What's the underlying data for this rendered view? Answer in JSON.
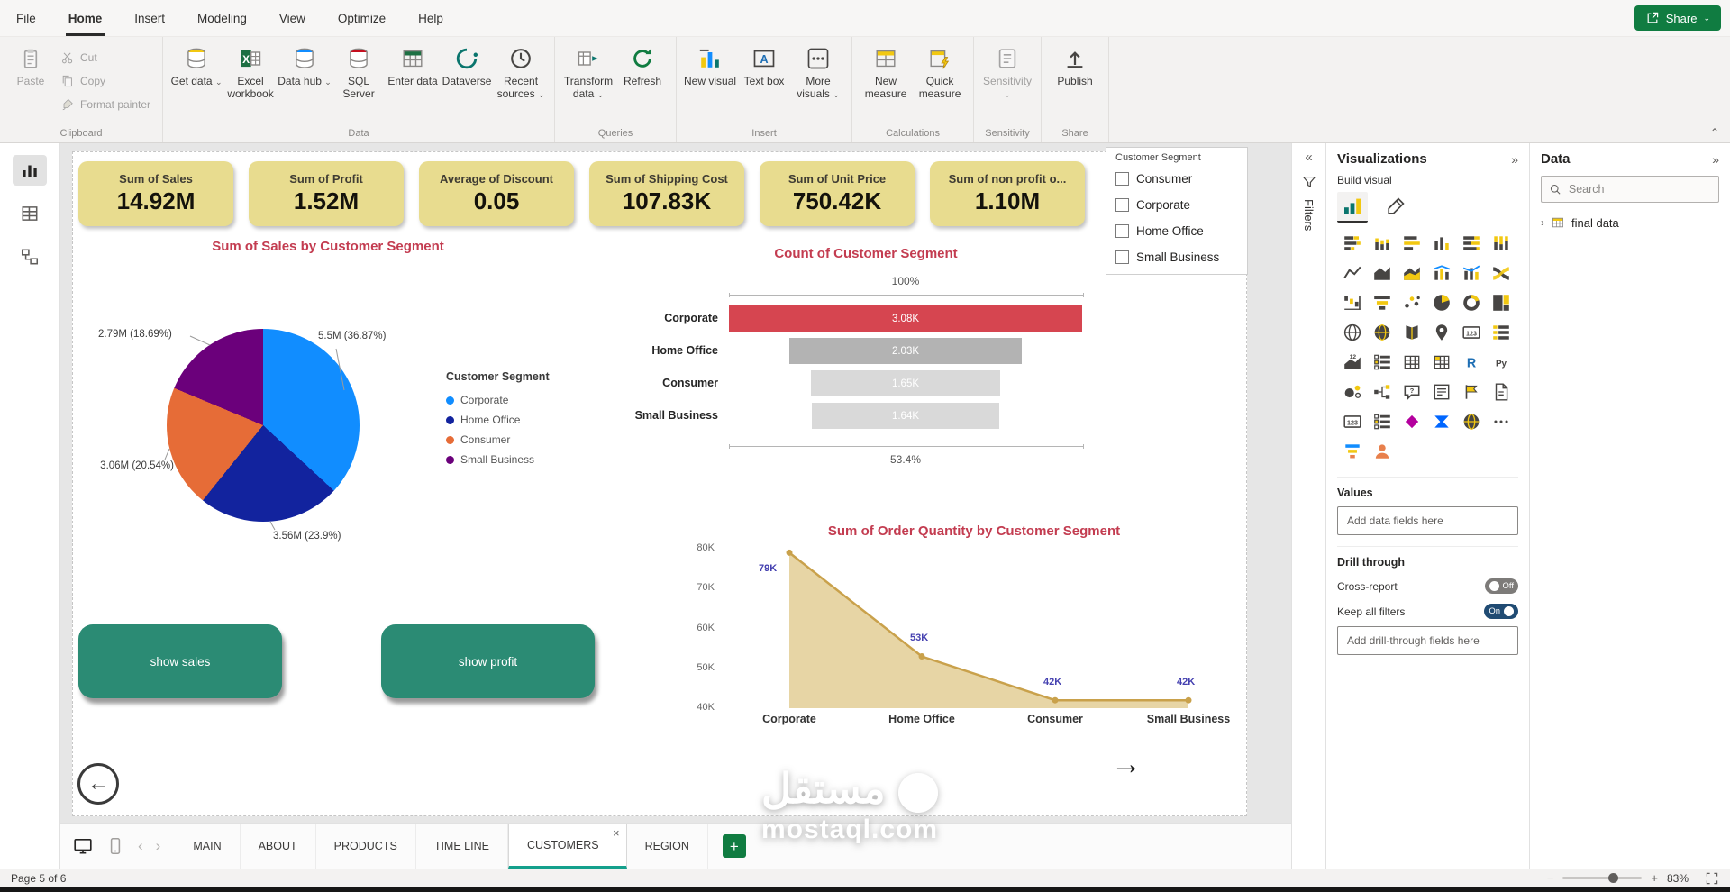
{
  "colors": {
    "accent-green": "#107C41",
    "kpi-bg": "#E8DC8F",
    "chart-title": "#C33C50",
    "button-teal": "#2B8B74",
    "tab-accent": "#14A08C",
    "toggle-on": "#204B73"
  },
  "menubar": {
    "items": [
      {
        "label": "File",
        "active": false
      },
      {
        "label": "Home",
        "active": true
      },
      {
        "label": "Insert",
        "active": false
      },
      {
        "label": "Modeling",
        "active": false
      },
      {
        "label": "View",
        "active": false
      },
      {
        "label": "Optimize",
        "active": false
      },
      {
        "label": "Help",
        "active": false
      }
    ],
    "share_label": "Share"
  },
  "ribbon": {
    "clipboard": {
      "name": "Clipboard",
      "paste_label": "Paste",
      "small_buttons": [
        {
          "name": "cut-button",
          "label": "Cut",
          "icon": "cut"
        },
        {
          "name": "copy-button",
          "label": "Copy",
          "icon": "copy"
        },
        {
          "name": "format-painter-button",
          "label": "Format painter",
          "icon": "brush"
        }
      ]
    },
    "groups": [
      {
        "name": "Data",
        "buttons": [
          {
            "name": "get-data-button",
            "label": "Get data",
            "icon": "db_yellow",
            "chevron": true
          },
          {
            "name": "excel-workbook-button",
            "label": "Excel workbook",
            "icon": "excel"
          },
          {
            "name": "data-hub-button",
            "label": "Data hub",
            "icon": "db_blue",
            "chevron": true
          },
          {
            "name": "sql-server-button",
            "label": "SQL Server",
            "icon": "db_red"
          },
          {
            "name": "enter-data-button",
            "label": "Enter data",
            "icon": "table_green"
          },
          {
            "name": "dataverse-button",
            "label": "Dataverse",
            "icon": "dataverse"
          },
          {
            "name": "recent-sources-button",
            "label": "Recent sources",
            "icon": "recent",
            "chevron": true
          }
        ]
      },
      {
        "name": "Queries",
        "buttons": [
          {
            "name": "transform-data-button",
            "label": "Transform data",
            "icon": "transform",
            "chevron": true
          },
          {
            "name": "refresh-button",
            "label": "Refresh",
            "icon": "refresh"
          }
        ]
      },
      {
        "name": "Insert",
        "buttons": [
          {
            "name": "new-visual-button",
            "label": "New visual",
            "icon": "newvisual"
          },
          {
            "name": "text-box-button",
            "label": "Text box",
            "icon": "textbox"
          },
          {
            "name": "more-visuals-button",
            "label": "More visuals",
            "icon": "morevisuals",
            "chevron": true
          }
        ]
      },
      {
        "name": "Calculations",
        "buttons": [
          {
            "name": "new-measure-button",
            "label": "New measure",
            "icon": "measure"
          },
          {
            "name": "quick-measure-button",
            "label": "Quick measure",
            "icon": "quickmeasure"
          }
        ]
      },
      {
        "name": "Sensitivity",
        "buttons": [
          {
            "name": "sensitivity-button",
            "label": "Sensitivity",
            "icon": "sensitivity",
            "chevron": true,
            "disabled": true
          }
        ]
      },
      {
        "name": "Share",
        "buttons": [
          {
            "name": "publish-button",
            "label": "Publish",
            "icon": "publish"
          }
        ]
      }
    ]
  },
  "left_rail": {
    "items": [
      {
        "name": "report-view-icon",
        "icon": "reportbars",
        "active": true
      },
      {
        "name": "table-view-icon",
        "icon": "grid",
        "active": false
      },
      {
        "name": "model-view-icon",
        "icon": "model",
        "active": false
      }
    ]
  },
  "canvas": {
    "kpi_cards": [
      {
        "title": "Sum of Sales",
        "value": "14.92M"
      },
      {
        "title": "Sum of Profit",
        "value": "1.52M"
      },
      {
        "title": "Average of Discount",
        "value": "0.05"
      },
      {
        "title": "Sum of Shipping Cost",
        "value": "107.83K"
      },
      {
        "title": "Sum of Unit Price",
        "value": "750.42K"
      },
      {
        "title": "Sum of non profit o...",
        "value": "1.10M"
      }
    ],
    "slicer": {
      "title": "Customer Segment",
      "options": [
        "Consumer",
        "Corporate",
        "Home Office",
        "Small Business"
      ]
    },
    "action_buttons": [
      {
        "label": "show sales"
      },
      {
        "label": "show profit"
      }
    ],
    "watermark": {
      "arabic": "مستقل",
      "latin": "mostaql.com"
    }
  },
  "chart_data": [
    {
      "type": "pie",
      "title": "Sum of Sales by Customer Segment",
      "legend_title": "Customer Segment",
      "legend_position": "right",
      "series": [
        {
          "name": "Corporate",
          "value": 5.5,
          "pct": 36.87,
          "label": "5.5M (36.87%)",
          "color": "#118DFF"
        },
        {
          "name": "Home Office",
          "value": 3.56,
          "pct": 23.9,
          "label": "3.56M (23.9%)",
          "color": "#12239E"
        },
        {
          "name": "Consumer",
          "value": 3.06,
          "pct": 20.54,
          "label": "3.06M (20.54%)",
          "color": "#E66C37"
        },
        {
          "name": "Small Business",
          "value": 2.79,
          "pct": 18.69,
          "label": "2.79M (18.69%)",
          "color": "#6B007B"
        }
      ]
    },
    {
      "type": "funnel",
      "title": "Count of Customer Segment",
      "categories": [
        "Corporate",
        "Home Office",
        "Consumer",
        "Small Business"
      ],
      "values": [
        3080,
        2030,
        1650,
        1640
      ],
      "labels": [
        "3.08K",
        "2.03K",
        "1.65K",
        "1.64K"
      ],
      "colors": [
        "#D64550",
        "#B3B3B3",
        "#D9D9D9",
        "#D9D9D9"
      ],
      "top_label": "100%",
      "bottom_label": "53.4%"
    },
    {
      "type": "area",
      "title": "Sum of Order Quantity by Customer Segment",
      "categories": [
        "Corporate",
        "Home Office",
        "Consumer",
        "Small Business"
      ],
      "values": [
        79000,
        53000,
        42000,
        42000
      ],
      "labels": [
        "79K",
        "53K",
        "42K",
        "42K"
      ],
      "ylim": [
        40000,
        80000
      ],
      "yticks": [
        "80K",
        "70K",
        "60K",
        "50K",
        "40K"
      ],
      "grid": false,
      "line_color": "#C9A14B",
      "fill_color": "#E7D5A5",
      "label_color": "#4541B0"
    }
  ],
  "pages_bar": {
    "tabs": [
      {
        "label": "MAIN",
        "active": false
      },
      {
        "label": "ABOUT",
        "active": false
      },
      {
        "label": "PRODUCTS",
        "active": false
      },
      {
        "label": "TIME LINE",
        "active": false
      },
      {
        "label": "CUSTOMERS",
        "active": true
      },
      {
        "label": "REGION",
        "active": false
      }
    ],
    "close_glyph": "×",
    "add_label": "+"
  },
  "status_bar": {
    "page_label": "Page 5 of 6",
    "zoom_percent": "83%"
  },
  "filters_panel": {
    "title": "Filters"
  },
  "viz_panel": {
    "title": "Visualizations",
    "build_label": "Build visual",
    "values_label": "Values",
    "values_placeholder": "Add data fields here",
    "drill_label": "Drill through",
    "cross_report_label": "Cross-report",
    "cross_report_state": "Off",
    "keep_filters_label": "Keep all filters",
    "keep_filters_state": "On",
    "drill_placeholder": "Add drill-through fields here",
    "icons": [
      {
        "name": "stacked-bar-chart-icon",
        "type": "hbars_s"
      },
      {
        "name": "stacked-column-chart-icon",
        "type": "vbars_s"
      },
      {
        "name": "clustered-bar-chart-icon",
        "type": "hbars"
      },
      {
        "name": "clustered-column-chart-icon",
        "type": "vbars"
      },
      {
        "name": "hundred-stacked-bar-chart-icon",
        "type": "hbars_f"
      },
      {
        "name": "hundred-stacked-column-chart-icon",
        "type": "vbars_f"
      },
      {
        "name": "line-chart-icon",
        "type": "line"
      },
      {
        "name": "area-chart-icon",
        "type": "area"
      },
      {
        "name": "stacked-area-chart-icon",
        "type": "area_s"
      },
      {
        "name": "line-and-stacked-column-chart-icon",
        "type": "combo"
      },
      {
        "name": "line-and-clustered-column-chart-icon",
        "type": "combo2"
      },
      {
        "name": "ribbon-chart-icon",
        "type": "ribbonc"
      },
      {
        "name": "waterfall-chart-icon",
        "type": "waterfall"
      },
      {
        "name": "funnel-chart-icon",
        "type": "funnelc"
      },
      {
        "name": "scatter-chart-icon",
        "type": "scatter"
      },
      {
        "name": "pie-chart-icon",
        "type": "pie"
      },
      {
        "name": "donut-chart-icon",
        "type": "donut"
      },
      {
        "name": "treemap-icon",
        "type": "treemap"
      },
      {
        "name": "map-icon",
        "type": "globe"
      },
      {
        "name": "filled-map-icon",
        "type": "globe_f"
      },
      {
        "name": "shape-map-icon",
        "type": "shapemap"
      },
      {
        "name": "azure-map-icon",
        "type": "pin"
      },
      {
        "name": "card-icon",
        "type": "card123"
      },
      {
        "name": "multi-row-card-icon",
        "type": "multirow"
      },
      {
        "name": "kpi-icon",
        "type": "kpi"
      },
      {
        "name": "slicer-icon",
        "type": "slicer"
      },
      {
        "name": "table-icon",
        "type": "tableic"
      },
      {
        "name": "matrix-icon",
        "type": "matrix"
      },
      {
        "name": "r-script-visual-icon",
        "type": "R"
      },
      {
        "name": "python-visual-icon",
        "type": "Py"
      },
      {
        "name": "key-influencers-icon",
        "type": "influ"
      },
      {
        "name": "decomposition-tree-icon",
        "type": "tree"
      },
      {
        "name": "qa-visual-icon",
        "type": "qa"
      },
      {
        "name": "smart-narrative-icon",
        "type": "narrative"
      },
      {
        "name": "metrics-icon",
        "type": "metrics"
      },
      {
        "name": "paginated-report-icon",
        "type": "paginated"
      },
      {
        "name": "new-card-icon",
        "type": "card123"
      },
      {
        "name": "new-slicer-icon",
        "type": "slicer"
      },
      {
        "name": "power-apps-icon",
        "type": "papps"
      },
      {
        "name": "power-automate-icon",
        "type": "pauto"
      },
      {
        "name": "arcgis-map-icon",
        "type": "globe_f"
      },
      {
        "name": "more-visual-options-icon",
        "type": "dots"
      },
      {
        "name": "custom-visual-funnel-icon",
        "type": "colorfunnel"
      },
      {
        "name": "custom-visual-person-icon",
        "type": "person"
      }
    ]
  },
  "data_panel": {
    "title": "Data",
    "search_placeholder": "Search",
    "fields": [
      {
        "label": "final data"
      }
    ]
  }
}
